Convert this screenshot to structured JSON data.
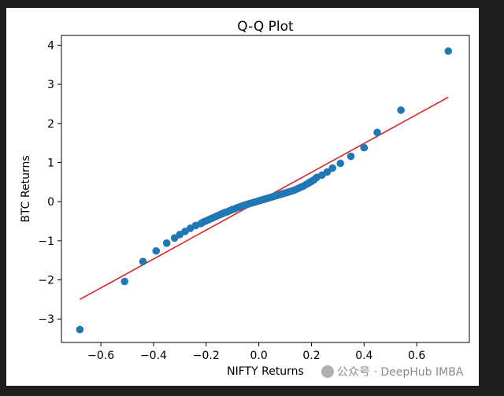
{
  "chart_data": {
    "type": "scatter",
    "title": "Q-Q Plot",
    "xlabel": "NIFTY Returns",
    "ylabel": "BTC Returns",
    "xlim": [
      -0.75,
      0.8
    ],
    "ylim": [
      -3.6,
      4.25
    ],
    "xticks": [
      -0.6,
      -0.4,
      -0.2,
      0.0,
      0.2,
      0.4,
      0.6
    ],
    "xtick_labels": [
      "−0.6",
      "−0.4",
      "−0.2",
      "0.0",
      "0.2",
      "0.4",
      "0.6"
    ],
    "yticks": [
      -3,
      -2,
      -1,
      0,
      1,
      2,
      3,
      4
    ],
    "ytick_labels": [
      "−3",
      "−2",
      "−1",
      "0",
      "1",
      "2",
      "3",
      "4"
    ],
    "grid": false,
    "series": [
      {
        "name": "quantiles",
        "color": "#1f77b4",
        "x": [
          -0.68,
          -0.51,
          -0.44,
          -0.39,
          -0.35,
          -0.32,
          -0.3,
          -0.28,
          -0.26,
          -0.24,
          -0.22,
          -0.21,
          -0.2,
          -0.19,
          -0.18,
          -0.17,
          -0.16,
          -0.15,
          -0.14,
          -0.13,
          -0.12,
          -0.11,
          -0.1,
          -0.09,
          -0.08,
          -0.07,
          -0.06,
          -0.05,
          -0.04,
          -0.03,
          -0.02,
          -0.01,
          0.0,
          0.01,
          0.02,
          0.03,
          0.04,
          0.05,
          0.06,
          0.07,
          0.08,
          0.09,
          0.1,
          0.11,
          0.12,
          0.13,
          0.14,
          0.15,
          0.16,
          0.17,
          0.18,
          0.19,
          0.2,
          0.21,
          0.22,
          0.24,
          0.26,
          0.28,
          0.31,
          0.35,
          0.4,
          0.45,
          0.54,
          0.72
        ],
        "y": [
          -3.27,
          -2.04,
          -1.53,
          -1.26,
          -1.06,
          -0.93,
          -0.84,
          -0.76,
          -0.68,
          -0.61,
          -0.56,
          -0.52,
          -0.49,
          -0.46,
          -0.43,
          -0.4,
          -0.37,
          -0.34,
          -0.31,
          -0.28,
          -0.26,
          -0.23,
          -0.2,
          -0.18,
          -0.15,
          -0.13,
          -0.1,
          -0.08,
          -0.06,
          -0.04,
          -0.02,
          0.0,
          0.02,
          0.04,
          0.06,
          0.08,
          0.1,
          0.12,
          0.14,
          0.16,
          0.18,
          0.2,
          0.22,
          0.24,
          0.26,
          0.28,
          0.31,
          0.34,
          0.37,
          0.4,
          0.44,
          0.48,
          0.52,
          0.56,
          0.62,
          0.68,
          0.76,
          0.86,
          0.98,
          1.16,
          1.38,
          1.77,
          2.34,
          3.85
        ]
      }
    ],
    "reference_line": {
      "name": "fit line",
      "color": "#d62728",
      "x": [
        -0.68,
        0.72
      ],
      "y": [
        -2.5,
        2.67
      ]
    }
  },
  "watermark": {
    "text": "公众号 · DeepHub IMBA"
  }
}
